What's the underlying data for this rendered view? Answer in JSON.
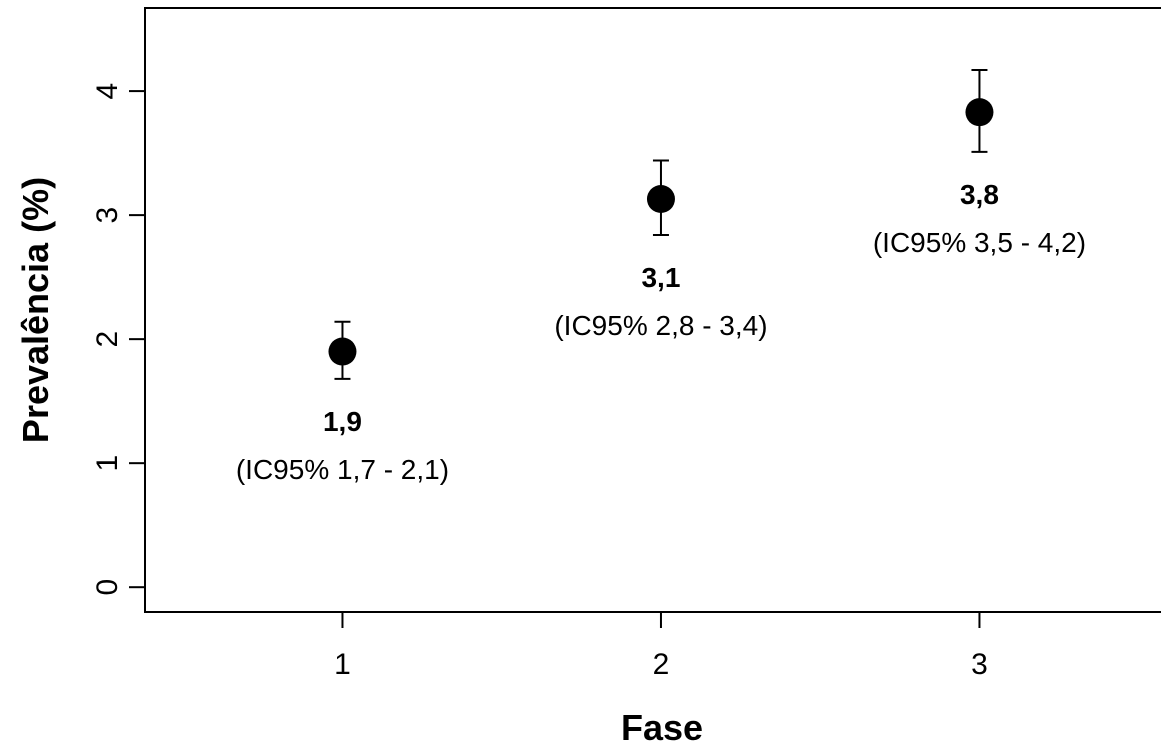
{
  "chart_data": {
    "type": "scatter",
    "xlabel": "Fase",
    "ylabel": "Prevalência (%)",
    "x": [
      1,
      2,
      3
    ],
    "x_tick_labels": [
      "1",
      "2",
      "3"
    ],
    "y_ticks": [
      0,
      1,
      2,
      3,
      4
    ],
    "y_tick_labels": [
      "0",
      "1",
      "2",
      "3",
      "4"
    ],
    "xlim": [
      0.38,
      3.57
    ],
    "ylim": [
      -0.2,
      4.67
    ],
    "grid": false,
    "series": [
      {
        "values": [
          1.9,
          3.13,
          3.83
        ],
        "ci_lower": [
          1.68,
          2.84,
          3.51
        ],
        "ci_upper": [
          2.14,
          3.44,
          4.17
        ],
        "color": "#000000"
      }
    ],
    "annotations": [
      {
        "x": 1,
        "value_text": "1,9",
        "ci_text": "(IC95% 1,7 - 2,1)"
      },
      {
        "x": 2,
        "value_text": "3,1",
        "ci_text": "(IC95% 2,8 - 3,4)"
      },
      {
        "x": 3,
        "value_text": "3,8",
        "ci_text": "(IC95% 3,5 - 4,2)"
      }
    ]
  }
}
